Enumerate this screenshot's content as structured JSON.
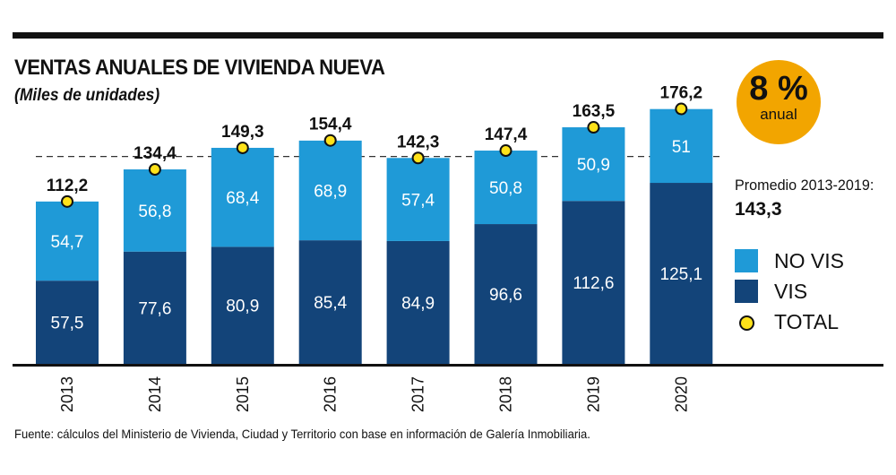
{
  "colors": {
    "novis": "#1f9ad7",
    "vis": "#134479",
    "total_dot": "#ffe21a",
    "badge": "#f2a500",
    "axis": "#111111"
  },
  "badge": {
    "value": "8 %",
    "label": "anual"
  },
  "average": {
    "label": "Promedio 2013-2019:",
    "value": "143,3"
  },
  "legend": [
    {
      "label": "NO VIS",
      "key": "novis"
    },
    {
      "label": "VIS",
      "key": "vis"
    },
    {
      "label": "TOTAL",
      "key": "total"
    }
  ],
  "source": "Fuente: cálculos del Ministerio de Vivienda, Ciudad y Territorio con base en información de Galería Inmobiliaria.",
  "chart_data": {
    "type": "bar",
    "stacked": true,
    "title": "VENTAS ANUALES  DE VIVIENDA NUEVA",
    "subtitle": "(Miles de unidades)",
    "categories": [
      "2013",
      "2014",
      "2015",
      "2016",
      "2017",
      "2018",
      "2019",
      "2020"
    ],
    "series": [
      {
        "name": "VIS",
        "values": [
          57.5,
          77.6,
          80.9,
          85.4,
          84.9,
          96.6,
          112.6,
          125.1
        ],
        "labels": [
          "57,5",
          "77,6",
          "80,9",
          "85,4",
          "84,9",
          "96,6",
          "112,6",
          "125,1"
        ]
      },
      {
        "name": "NO VIS",
        "values": [
          54.7,
          56.8,
          68.4,
          68.9,
          57.4,
          50.8,
          50.9,
          51
        ],
        "labels": [
          "54,7",
          "56,8",
          "68,4",
          "68,9",
          "57,4",
          "50,8",
          "50,9",
          "51"
        ]
      }
    ],
    "totals": {
      "values": [
        112.2,
        134.4,
        149.3,
        154.4,
        142.3,
        147.4,
        163.5,
        176.2
      ],
      "labels": [
        "112,2",
        "134,4",
        "149,3",
        "154,4",
        "142,3",
        "147,4",
        "163,5",
        "176,2"
      ]
    },
    "average_line": 143.3,
    "xlabel": "",
    "ylabel": "",
    "ylim": [
      0,
      180
    ]
  }
}
